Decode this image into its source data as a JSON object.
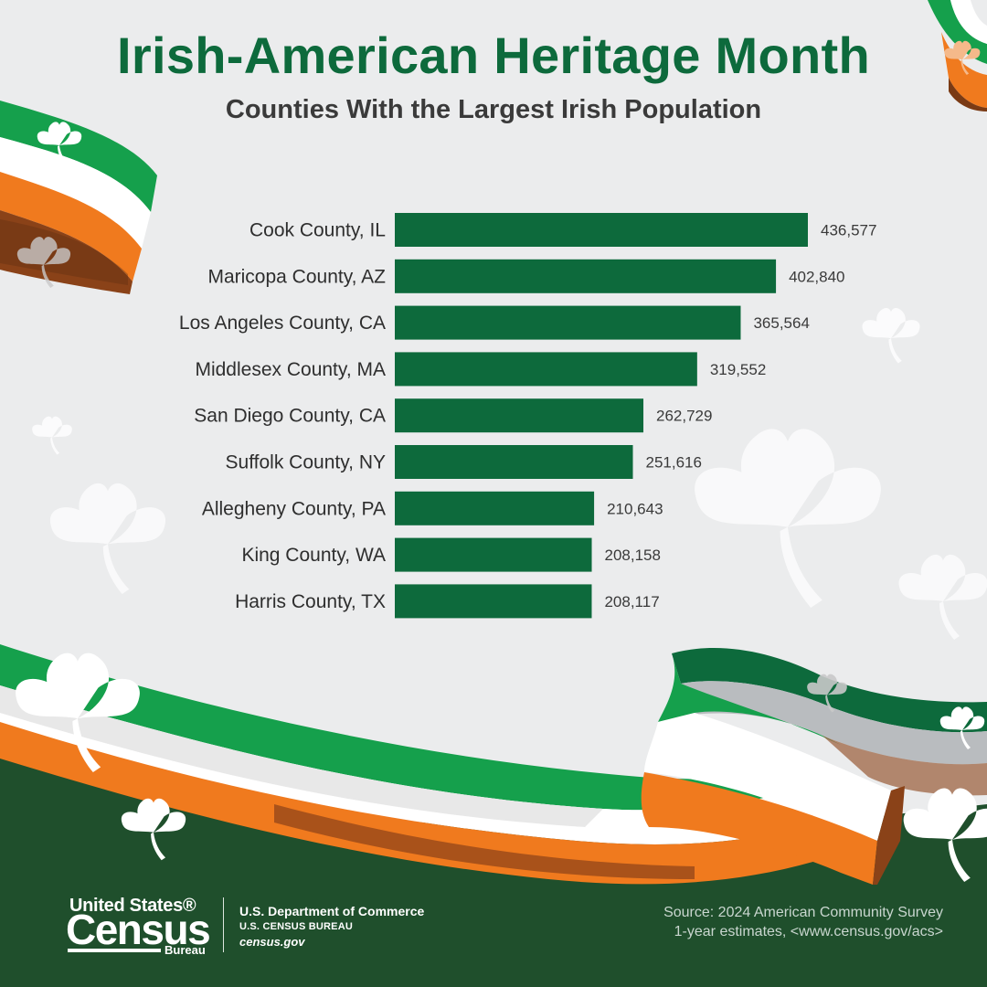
{
  "header": {
    "title": "Irish-American Heritage Month",
    "subtitle": "Counties With the Largest Irish Population"
  },
  "chart_data": {
    "type": "bar",
    "orientation": "horizontal",
    "categories": [
      "Cook County, IL",
      "Maricopa County, AZ",
      "Los Angeles County, CA",
      "Middlesex County, MA",
      "San Diego County, CA",
      "Suffolk County, NY",
      "Allegheny County, PA",
      "King County, WA",
      "Harris County, TX"
    ],
    "values": [
      436577,
      402840,
      365564,
      319552,
      262729,
      251616,
      210643,
      208158,
      208117
    ],
    "value_labels": [
      "436,577",
      "402,840",
      "365,564",
      "319,552",
      "262,729",
      "251,616",
      "210,643",
      "208,158",
      "208,117"
    ],
    "title": "Counties With the Largest Irish Population",
    "xlabel": "",
    "ylabel": "",
    "xlim": [
      0,
      436577
    ],
    "grid": false,
    "legend": "none",
    "bar_color": "#0d6a3c"
  },
  "footer": {
    "logo_line1": "United States®",
    "logo_line2": "Census",
    "logo_line3": "Bureau",
    "dept_line1": "U.S. Department of Commerce",
    "dept_line2": "U.S. CENSUS BUREAU",
    "dept_line3": "census.gov",
    "source_line1": "Source: 2024 American Community Survey",
    "source_line2": "1-year estimates, <www.census.gov/acs>"
  },
  "colors": {
    "green": "#0d6a3c",
    "dark_green": "#1f4f2c",
    "orange": "#f07a1e",
    "white": "#ffffff",
    "background": "#ebeced"
  },
  "decorations": {
    "icons": [
      "shamrock-icon",
      "irish-ribbon"
    ]
  }
}
